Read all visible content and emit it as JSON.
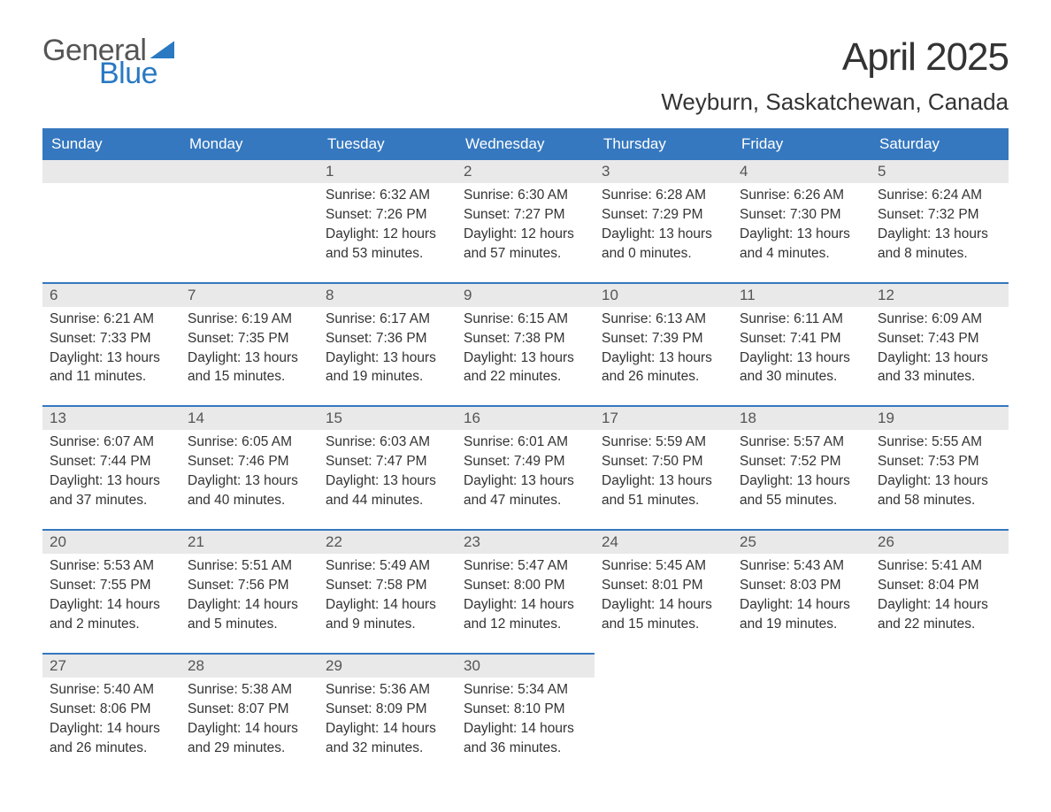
{
  "brand": {
    "word1": "General",
    "word2": "Blue"
  },
  "title": {
    "month": "April 2025",
    "location": "Weyburn, Saskatchewan, Canada"
  },
  "colors": {
    "header_bg": "#3578bf",
    "header_text": "#ffffff",
    "daynum_bg": "#e9e9e9",
    "row_border": "#3578bf",
    "text": "#333333",
    "brand_blue": "#2a79c2",
    "brand_gray": "#555555",
    "background": "#ffffff"
  },
  "weekdays": [
    "Sunday",
    "Monday",
    "Tuesday",
    "Wednesday",
    "Thursday",
    "Friday",
    "Saturday"
  ],
  "weeks": [
    [
      null,
      null,
      {
        "n": "1",
        "sr": "Sunrise: 6:32 AM",
        "ss": "Sunset: 7:26 PM",
        "d1": "Daylight: 12 hours",
        "d2": "and 53 minutes."
      },
      {
        "n": "2",
        "sr": "Sunrise: 6:30 AM",
        "ss": "Sunset: 7:27 PM",
        "d1": "Daylight: 12 hours",
        "d2": "and 57 minutes."
      },
      {
        "n": "3",
        "sr": "Sunrise: 6:28 AM",
        "ss": "Sunset: 7:29 PM",
        "d1": "Daylight: 13 hours",
        "d2": "and 0 minutes."
      },
      {
        "n": "4",
        "sr": "Sunrise: 6:26 AM",
        "ss": "Sunset: 7:30 PM",
        "d1": "Daylight: 13 hours",
        "d2": "and 4 minutes."
      },
      {
        "n": "5",
        "sr": "Sunrise: 6:24 AM",
        "ss": "Sunset: 7:32 PM",
        "d1": "Daylight: 13 hours",
        "d2": "and 8 minutes."
      }
    ],
    [
      {
        "n": "6",
        "sr": "Sunrise: 6:21 AM",
        "ss": "Sunset: 7:33 PM",
        "d1": "Daylight: 13 hours",
        "d2": "and 11 minutes."
      },
      {
        "n": "7",
        "sr": "Sunrise: 6:19 AM",
        "ss": "Sunset: 7:35 PM",
        "d1": "Daylight: 13 hours",
        "d2": "and 15 minutes."
      },
      {
        "n": "8",
        "sr": "Sunrise: 6:17 AM",
        "ss": "Sunset: 7:36 PM",
        "d1": "Daylight: 13 hours",
        "d2": "and 19 minutes."
      },
      {
        "n": "9",
        "sr": "Sunrise: 6:15 AM",
        "ss": "Sunset: 7:38 PM",
        "d1": "Daylight: 13 hours",
        "d2": "and 22 minutes."
      },
      {
        "n": "10",
        "sr": "Sunrise: 6:13 AM",
        "ss": "Sunset: 7:39 PM",
        "d1": "Daylight: 13 hours",
        "d2": "and 26 minutes."
      },
      {
        "n": "11",
        "sr": "Sunrise: 6:11 AM",
        "ss": "Sunset: 7:41 PM",
        "d1": "Daylight: 13 hours",
        "d2": "and 30 minutes."
      },
      {
        "n": "12",
        "sr": "Sunrise: 6:09 AM",
        "ss": "Sunset: 7:43 PM",
        "d1": "Daylight: 13 hours",
        "d2": "and 33 minutes."
      }
    ],
    [
      {
        "n": "13",
        "sr": "Sunrise: 6:07 AM",
        "ss": "Sunset: 7:44 PM",
        "d1": "Daylight: 13 hours",
        "d2": "and 37 minutes."
      },
      {
        "n": "14",
        "sr": "Sunrise: 6:05 AM",
        "ss": "Sunset: 7:46 PM",
        "d1": "Daylight: 13 hours",
        "d2": "and 40 minutes."
      },
      {
        "n": "15",
        "sr": "Sunrise: 6:03 AM",
        "ss": "Sunset: 7:47 PM",
        "d1": "Daylight: 13 hours",
        "d2": "and 44 minutes."
      },
      {
        "n": "16",
        "sr": "Sunrise: 6:01 AM",
        "ss": "Sunset: 7:49 PM",
        "d1": "Daylight: 13 hours",
        "d2": "and 47 minutes."
      },
      {
        "n": "17",
        "sr": "Sunrise: 5:59 AM",
        "ss": "Sunset: 7:50 PM",
        "d1": "Daylight: 13 hours",
        "d2": "and 51 minutes."
      },
      {
        "n": "18",
        "sr": "Sunrise: 5:57 AM",
        "ss": "Sunset: 7:52 PM",
        "d1": "Daylight: 13 hours",
        "d2": "and 55 minutes."
      },
      {
        "n": "19",
        "sr": "Sunrise: 5:55 AM",
        "ss": "Sunset: 7:53 PM",
        "d1": "Daylight: 13 hours",
        "d2": "and 58 minutes."
      }
    ],
    [
      {
        "n": "20",
        "sr": "Sunrise: 5:53 AM",
        "ss": "Sunset: 7:55 PM",
        "d1": "Daylight: 14 hours",
        "d2": "and 2 minutes."
      },
      {
        "n": "21",
        "sr": "Sunrise: 5:51 AM",
        "ss": "Sunset: 7:56 PM",
        "d1": "Daylight: 14 hours",
        "d2": "and 5 minutes."
      },
      {
        "n": "22",
        "sr": "Sunrise: 5:49 AM",
        "ss": "Sunset: 7:58 PM",
        "d1": "Daylight: 14 hours",
        "d2": "and 9 minutes."
      },
      {
        "n": "23",
        "sr": "Sunrise: 5:47 AM",
        "ss": "Sunset: 8:00 PM",
        "d1": "Daylight: 14 hours",
        "d2": "and 12 minutes."
      },
      {
        "n": "24",
        "sr": "Sunrise: 5:45 AM",
        "ss": "Sunset: 8:01 PM",
        "d1": "Daylight: 14 hours",
        "d2": "and 15 minutes."
      },
      {
        "n": "25",
        "sr": "Sunrise: 5:43 AM",
        "ss": "Sunset: 8:03 PM",
        "d1": "Daylight: 14 hours",
        "d2": "and 19 minutes."
      },
      {
        "n": "26",
        "sr": "Sunrise: 5:41 AM",
        "ss": "Sunset: 8:04 PM",
        "d1": "Daylight: 14 hours",
        "d2": "and 22 minutes."
      }
    ],
    [
      {
        "n": "27",
        "sr": "Sunrise: 5:40 AM",
        "ss": "Sunset: 8:06 PM",
        "d1": "Daylight: 14 hours",
        "d2": "and 26 minutes."
      },
      {
        "n": "28",
        "sr": "Sunrise: 5:38 AM",
        "ss": "Sunset: 8:07 PM",
        "d1": "Daylight: 14 hours",
        "d2": "and 29 minutes."
      },
      {
        "n": "29",
        "sr": "Sunrise: 5:36 AM",
        "ss": "Sunset: 8:09 PM",
        "d1": "Daylight: 14 hours",
        "d2": "and 32 minutes."
      },
      {
        "n": "30",
        "sr": "Sunrise: 5:34 AM",
        "ss": "Sunset: 8:10 PM",
        "d1": "Daylight: 14 hours",
        "d2": "and 36 minutes."
      },
      null,
      null,
      null
    ]
  ]
}
